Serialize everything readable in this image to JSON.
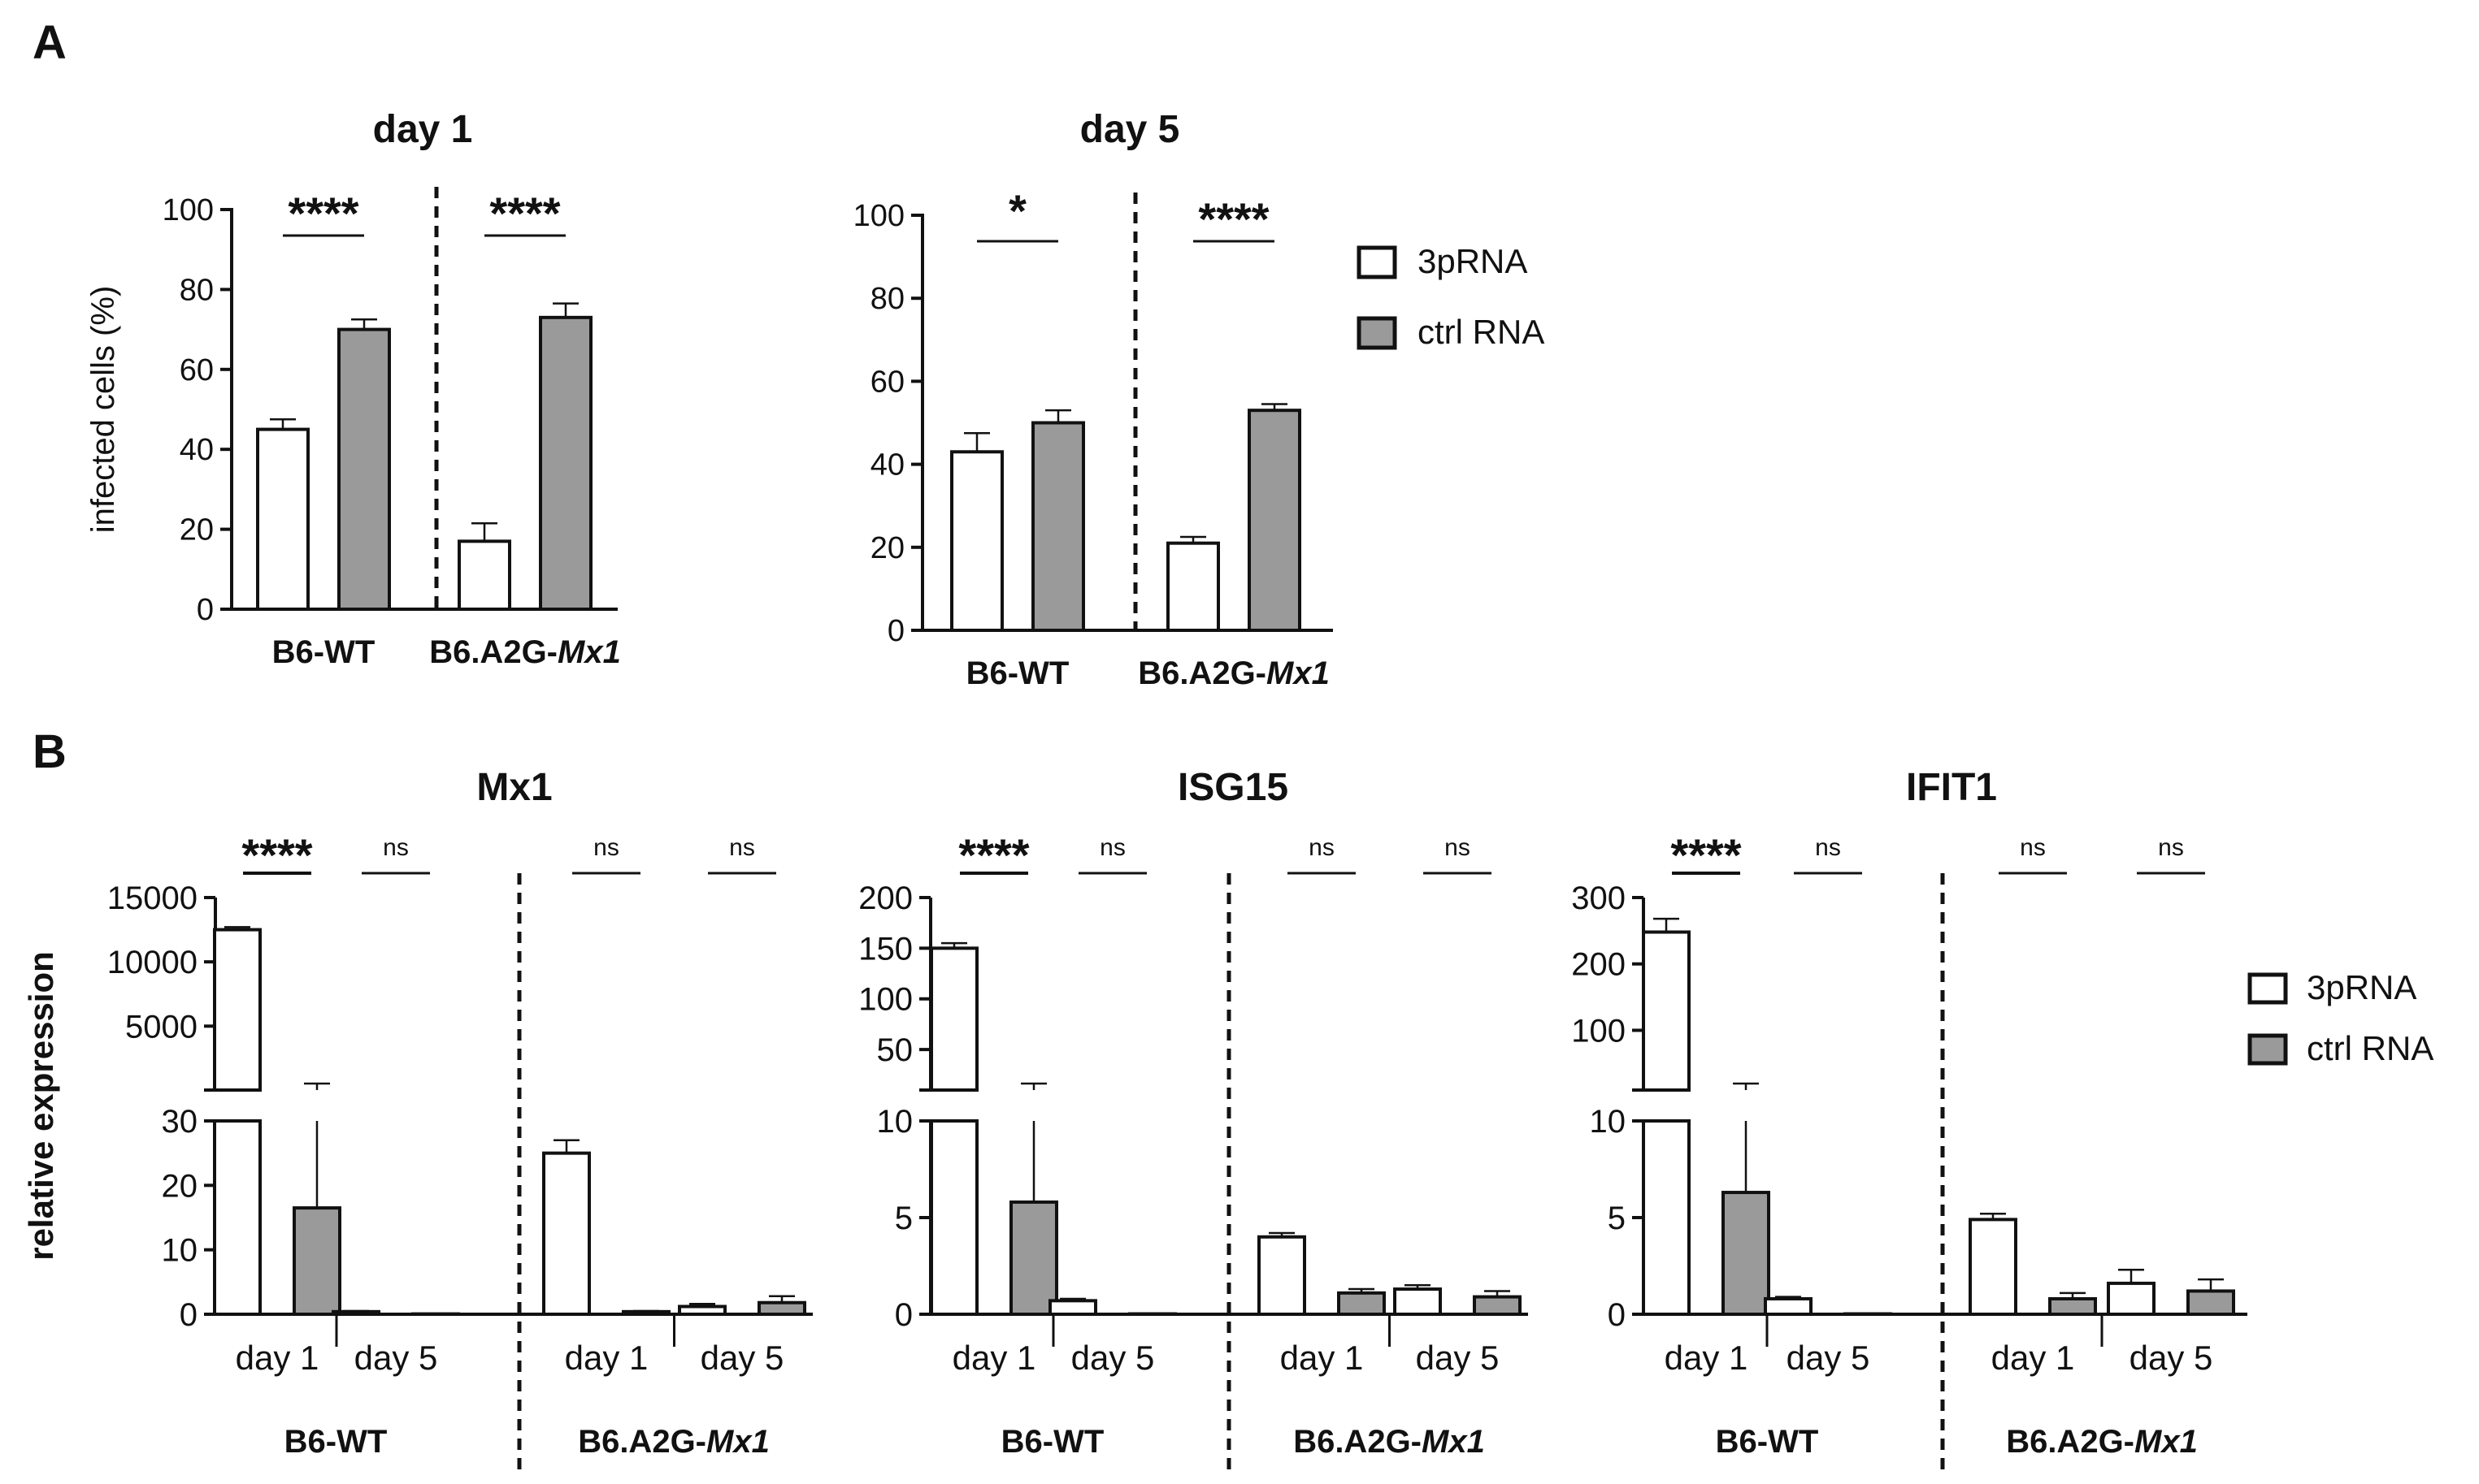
{
  "figure": {
    "panel_a_label": "A",
    "panel_b_label": "B"
  },
  "colors": {
    "series_3prna": "#ffffff",
    "series_ctrl": "#9a9a9a",
    "stroke": "#111111"
  },
  "legend": {
    "items": [
      "3pRNA",
      "ctrl RNA"
    ]
  },
  "chart_data": [
    {
      "id": "A-day1",
      "type": "bar",
      "title": "day 1",
      "ylabel": "infected cells (%)",
      "ylim": [
        0,
        100
      ],
      "yticks": [
        0,
        20,
        40,
        60,
        80,
        100
      ],
      "groups": [
        {
          "label_prefix": "B6-WT",
          "label_italic": "",
          "bars": [
            {
              "series": "3pRNA",
              "value": 45,
              "err": 2.5
            },
            {
              "series": "ctrl RNA",
              "value": 70,
              "err": 2.5
            }
          ],
          "sig": "****"
        },
        {
          "label_prefix": "B6.A2G-",
          "label_italic": "Mx1",
          "bars": [
            {
              "series": "3pRNA",
              "value": 17,
              "err": 4.5
            },
            {
              "series": "ctrl RNA",
              "value": 73,
              "err": 3.5
            }
          ],
          "sig": "****"
        }
      ]
    },
    {
      "id": "A-day5",
      "type": "bar",
      "title": "day 5",
      "ylabel": "",
      "ylim": [
        0,
        100
      ],
      "yticks": [
        0,
        20,
        40,
        60,
        80,
        100
      ],
      "groups": [
        {
          "label_prefix": "B6-WT",
          "label_italic": "",
          "bars": [
            {
              "series": "3pRNA",
              "value": 43,
              "err": 4.5
            },
            {
              "series": "ctrl RNA",
              "value": 50,
              "err": 3
            }
          ],
          "sig": "*"
        },
        {
          "label_prefix": "B6.A2G-",
          "label_italic": "Mx1",
          "bars": [
            {
              "series": "3pRNA",
              "value": 21,
              "err": 1.5
            },
            {
              "series": "ctrl RNA",
              "value": 53,
              "err": 1.5
            }
          ],
          "sig": "****"
        }
      ]
    },
    {
      "id": "B-Mx1",
      "type": "bar",
      "title": "Mx1",
      "ylabel": "relative expression",
      "axis_break": true,
      "lower": {
        "ylim": [
          0,
          30
        ],
        "yticks": [
          0,
          10,
          20,
          30
        ]
      },
      "upper": {
        "ylim": [
          0,
          15000
        ],
        "yticks": [
          5000,
          10000,
          15000
        ]
      },
      "groups": [
        {
          "label_prefix": "B6-WT",
          "label_italic": "",
          "timepoints": [
            {
              "label": "day 1",
              "sig": "****",
              "bars": [
                {
                  "series": "3pRNA",
                  "value": 12500,
                  "err": 200
                },
                {
                  "series": "ctrl RNA",
                  "value": 16.5,
                  "err": 20
                }
              ]
            },
            {
              "label": "day 5",
              "sig": "ns",
              "bars": [
                {
                  "series": "3pRNA",
                  "value": 0.4,
                  "err": 0.1
                },
                {
                  "series": "ctrl RNA",
                  "value": 0.05,
                  "err": 0
                }
              ]
            }
          ]
        },
        {
          "label_prefix": "B6.A2G-",
          "label_italic": "Mx1",
          "timepoints": [
            {
              "label": "day 1",
              "sig": "ns",
              "bars": [
                {
                  "series": "3pRNA",
                  "value": 25,
                  "err": 2
                },
                {
                  "series": "ctrl RNA",
                  "value": 0.4,
                  "err": 0.1
                }
              ]
            },
            {
              "label": "day 5",
              "sig": "ns",
              "bars": [
                {
                  "series": "3pRNA",
                  "value": 1.2,
                  "err": 0.4
                },
                {
                  "series": "ctrl RNA",
                  "value": 1.8,
                  "err": 1
                }
              ]
            }
          ]
        }
      ]
    },
    {
      "id": "B-ISG15",
      "type": "bar",
      "title": "ISG15",
      "ylabel": "",
      "axis_break": true,
      "lower": {
        "ylim": [
          0,
          10
        ],
        "yticks": [
          0,
          5,
          10
        ]
      },
      "upper": {
        "ylim": [
          0,
          200
        ],
        "yticks": [
          50,
          100,
          150,
          200
        ]
      },
      "groups": [
        {
          "label_prefix": "B6-WT",
          "label_italic": "",
          "timepoints": [
            {
              "label": "day 1",
              "sig": "****",
              "bars": [
                {
                  "series": "3pRNA",
                  "value": 150,
                  "err": 5
                },
                {
                  "series": "ctrl RNA",
                  "value": 5.8,
                  "err": 7
                }
              ]
            },
            {
              "label": "day 5",
              "sig": "ns",
              "bars": [
                {
                  "series": "3pRNA",
                  "value": 0.7,
                  "err": 0.1
                },
                {
                  "series": "ctrl RNA",
                  "value": 0.02,
                  "err": 0
                }
              ]
            }
          ]
        },
        {
          "label_prefix": "B6.A2G-",
          "label_italic": "Mx1",
          "timepoints": [
            {
              "label": "day 1",
              "sig": "ns",
              "bars": [
                {
                  "series": "3pRNA",
                  "value": 4,
                  "err": 0.2
                },
                {
                  "series": "ctrl RNA",
                  "value": 1.1,
                  "err": 0.2
                }
              ]
            },
            {
              "label": "day 5",
              "sig": "ns",
              "bars": [
                {
                  "series": "3pRNA",
                  "value": 1.3,
                  "err": 0.2
                },
                {
                  "series": "ctrl RNA",
                  "value": 0.9,
                  "err": 0.3
                }
              ]
            }
          ]
        }
      ]
    },
    {
      "id": "B-IFIT1",
      "type": "bar",
      "title": "IFIT1",
      "ylabel": "",
      "axis_break": true,
      "lower": {
        "ylim": [
          0,
          10
        ],
        "yticks": [
          0,
          5,
          10
        ]
      },
      "upper": {
        "ylim": [
          0,
          300
        ],
        "yticks": [
          100,
          200,
          300
        ]
      },
      "groups": [
        {
          "label_prefix": "B6-WT",
          "label_italic": "",
          "timepoints": [
            {
              "label": "day 1",
              "sig": "****",
              "bars": [
                {
                  "series": "3pRNA",
                  "value": 248,
                  "err": 20
                },
                {
                  "series": "ctrl RNA",
                  "value": 6.3,
                  "err": 7
                }
              ]
            },
            {
              "label": "day 5",
              "sig": "ns",
              "bars": [
                {
                  "series": "3pRNA",
                  "value": 0.8,
                  "err": 0.1
                },
                {
                  "series": "ctrl RNA",
                  "value": 0.02,
                  "err": 0
                }
              ]
            }
          ]
        },
        {
          "label_prefix": "B6.A2G-",
          "label_italic": "Mx1",
          "timepoints": [
            {
              "label": "day 1",
              "sig": "ns",
              "bars": [
                {
                  "series": "3pRNA",
                  "value": 4.9,
                  "err": 0.3
                },
                {
                  "series": "ctrl RNA",
                  "value": 0.8,
                  "err": 0.3
                }
              ]
            },
            {
              "label": "day 5",
              "sig": "ns",
              "bars": [
                {
                  "series": "3pRNA",
                  "value": 1.6,
                  "err": 0.7
                },
                {
                  "series": "ctrl RNA",
                  "value": 1.2,
                  "err": 0.6
                }
              ]
            }
          ]
        }
      ]
    }
  ]
}
